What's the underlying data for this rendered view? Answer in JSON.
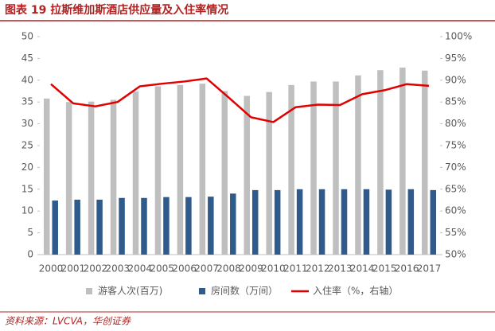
{
  "chart_data": {
    "type": "bar",
    "title": "图表 19  拉斯维加斯酒店供应量及入住率情况",
    "source": "资料来源：LVCVA，华创证券",
    "categories": [
      "2000",
      "2001",
      "2002",
      "2003",
      "2004",
      "2005",
      "2006",
      "2007",
      "2008",
      "2009",
      "2010",
      "2011",
      "2012",
      "2013",
      "2014",
      "2015",
      "2016",
      "2017"
    ],
    "series": [
      {
        "name": "游客人次(百万)",
        "type": "bar",
        "color": "#bfbfbf",
        "values": [
          35.8,
          35.0,
          35.1,
          35.5,
          37.4,
          38.6,
          38.9,
          39.2,
          37.5,
          36.4,
          37.3,
          38.9,
          39.7,
          39.7,
          41.1,
          42.3,
          42.9,
          42.2
        ]
      },
      {
        "name": "房间数（万间）",
        "type": "bar",
        "color": "#2f5b8c",
        "values": [
          12.4,
          12.6,
          12.6,
          13.0,
          13.0,
          13.2,
          13.2,
          13.3,
          14.0,
          14.8,
          14.8,
          15.0,
          15.0,
          15.0,
          15.0,
          14.9,
          15.0,
          14.8
        ]
      },
      {
        "name": "入住率（%，右轴）",
        "type": "line",
        "axis": "y2",
        "color": "#e00000",
        "values": [
          89.1,
          84.7,
          84.0,
          85.0,
          88.6,
          89.2,
          89.7,
          90.4,
          86.0,
          81.5,
          80.4,
          83.8,
          84.4,
          84.3,
          86.8,
          87.7,
          89.1,
          88.7
        ]
      }
    ],
    "ylim": [
      0,
      50
    ],
    "yticks": [
      0,
      5,
      10,
      15,
      20,
      25,
      30,
      35,
      40,
      45,
      50
    ],
    "y2lim": [
      50,
      100
    ],
    "y2ticks": [
      {
        "value": 50,
        "label": "50%"
      },
      {
        "value": 55,
        "label": "55%"
      },
      {
        "value": 60,
        "label": "60%"
      },
      {
        "value": 65,
        "label": "65%"
      },
      {
        "value": 70,
        "label": "70%"
      },
      {
        "value": 75,
        "label": "75%"
      },
      {
        "value": 80,
        "label": "80%"
      },
      {
        "value": 85,
        "label": "85%"
      },
      {
        "value": 90,
        "label": "90%"
      },
      {
        "value": 95,
        "label": "95%"
      },
      {
        "value": 100,
        "label": "100%"
      }
    ],
    "legend": "bottom"
  }
}
